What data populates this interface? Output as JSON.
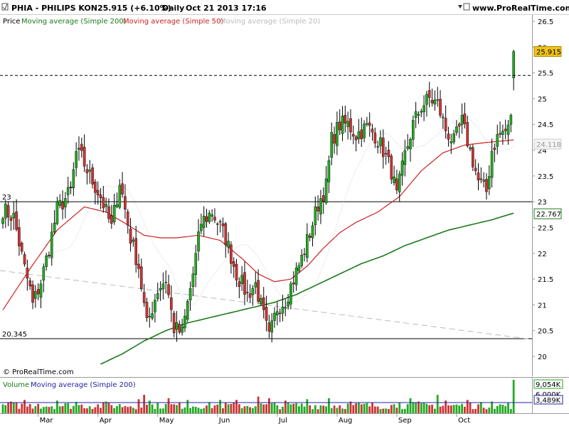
{
  "header": {
    "symbol": "PHIA - PHILIPS KON",
    "price": "25.915 (+6.10%)",
    "period": "Daily",
    "timestamp": "Oct 21 2013 17:16",
    "site": "www.ProRealTime.com"
  },
  "legend": {
    "price_label": "Price",
    "ma200_label": "Moving average (Simple 200)",
    "ma50_label": "Moving average (Simple 50)",
    "ma20_label": "Moving average (Simple 20)"
  },
  "volume_legend": {
    "label": "Volume",
    "ma_label": "Moving average (Simple 200)"
  },
  "watermark": "© ProRealTime.com",
  "colors": {
    "up": "#22aa22",
    "down": "#cc3333",
    "ma200": "#1a7a1a",
    "ma50": "#cc2222",
    "ma20": "#b8b8b8",
    "volume_ma": "#2222aa",
    "current_price_bg": "#f0c419"
  },
  "chart_data": [
    {
      "type": "candlestick",
      "title": "PHIA - PHILIPS KON",
      "ylim": [
        19.85,
        26.6
      ],
      "y_ticks": [
        "26.5",
        "26",
        "25.5",
        "25",
        "24.5",
        "24",
        "23.5",
        "23",
        "22.5",
        "22",
        "21.5",
        "21",
        "20.5",
        "20"
      ],
      "x_labels": [
        "Mar",
        "Apr",
        "May",
        "Jun",
        "Jul",
        "Aug",
        "Sep",
        "Oct"
      ],
      "x_label_index": [
        13,
        35,
        57,
        79,
        101,
        123,
        145,
        167
      ],
      "levels": [
        {
          "label": "23",
          "value": 23
        },
        {
          "label": "20.345",
          "value": 20.345
        }
      ],
      "current_price": {
        "label": "25.915",
        "value": 25.915
      },
      "current_price_guide": 25.45,
      "ma_labels": [
        {
          "label": "22.767",
          "value": 22.767
        },
        {
          "label": "24.118",
          "value": 24.118
        }
      ],
      "ohlc_anchors": [
        [
          0,
          22.85
        ],
        [
          4,
          22.7
        ],
        [
          8,
          21.7
        ],
        [
          10,
          21.3
        ],
        [
          11,
          21.0
        ],
        [
          14,
          21.45
        ],
        [
          17,
          22.1
        ],
        [
          20,
          22.85
        ],
        [
          25,
          23.2
        ],
        [
          27,
          23.95
        ],
        [
          29,
          23.85
        ],
        [
          32,
          23.5
        ],
        [
          36,
          23.1
        ],
        [
          40,
          22.5
        ],
        [
          43,
          23.4
        ],
        [
          47,
          22.3
        ],
        [
          50,
          21.75
        ],
        [
          53,
          20.6
        ],
        [
          57,
          21.3
        ],
        [
          60,
          21.5
        ],
        [
          63,
          20.55
        ],
        [
          66,
          20.45
        ],
        [
          70,
          21.6
        ],
        [
          73,
          22.6
        ],
        [
          77,
          22.8
        ],
        [
          79,
          22.6
        ],
        [
          82,
          22.3
        ],
        [
          86,
          21.6
        ],
        [
          90,
          21.2
        ],
        [
          93,
          21.4
        ],
        [
          98,
          20.35
        ],
        [
          101,
          20.95
        ],
        [
          104,
          21.1
        ],
        [
          107,
          21.5
        ],
        [
          110,
          21.9
        ],
        [
          113,
          22.4
        ],
        [
          116,
          22.95
        ],
        [
          119,
          23.3
        ],
        [
          121,
          24.2
        ],
        [
          124,
          24.5
        ],
        [
          127,
          24.5
        ],
        [
          130,
          24.3
        ],
        [
          134,
          24.45
        ],
        [
          137,
          24.3
        ],
        [
          140,
          24.0
        ],
        [
          143,
          23.6
        ],
        [
          145,
          23.1
        ],
        [
          148,
          23.9
        ],
        [
          151,
          24.5
        ],
        [
          154,
          24.85
        ],
        [
          157,
          25.0
        ],
        [
          160,
          24.9
        ],
        [
          163,
          24.4
        ],
        [
          166,
          24.15
        ],
        [
          169,
          24.55
        ],
        [
          172,
          24.0
        ],
        [
          175,
          23.4
        ],
        [
          178,
          23.2
        ],
        [
          180,
          24.0
        ],
        [
          182,
          24.25
        ],
        [
          184,
          24.35
        ],
        [
          186,
          24.4
        ],
        [
          188,
          25.05
        ]
      ],
      "ma50_anchors": [
        [
          0,
          20.9
        ],
        [
          10,
          21.7
        ],
        [
          20,
          22.45
        ],
        [
          30,
          22.9
        ],
        [
          38,
          22.8
        ],
        [
          46,
          22.55
        ],
        [
          52,
          22.35
        ],
        [
          58,
          22.3
        ],
        [
          64,
          22.3
        ],
        [
          72,
          22.35
        ],
        [
          80,
          22.25
        ],
        [
          88,
          21.9
        ],
        [
          94,
          21.6
        ],
        [
          100,
          21.45
        ],
        [
          106,
          21.5
        ],
        [
          112,
          21.75
        ],
        [
          118,
          22.1
        ],
        [
          124,
          22.4
        ],
        [
          130,
          22.6
        ],
        [
          138,
          22.8
        ],
        [
          146,
          23.1
        ],
        [
          154,
          23.6
        ],
        [
          162,
          23.95
        ],
        [
          170,
          24.1
        ],
        [
          178,
          24.15
        ],
        [
          188,
          24.2
        ]
      ],
      "ma200_anchors": [
        [
          36,
          19.85
        ],
        [
          44,
          20.05
        ],
        [
          52,
          20.3
        ],
        [
          60,
          20.5
        ],
        [
          68,
          20.65
        ],
        [
          76,
          20.75
        ],
        [
          84,
          20.85
        ],
        [
          92,
          20.95
        ],
        [
          100,
          21.05
        ],
        [
          108,
          21.2
        ],
        [
          116,
          21.4
        ],
        [
          124,
          21.6
        ],
        [
          132,
          21.8
        ],
        [
          140,
          21.95
        ],
        [
          148,
          22.15
        ],
        [
          156,
          22.3
        ],
        [
          164,
          22.45
        ],
        [
          172,
          22.55
        ],
        [
          180,
          22.65
        ],
        [
          188,
          22.78
        ]
      ],
      "volume": {
        "legend_ticks": [
          "9,054K",
          "6,000K",
          "3,489K"
        ],
        "spikes": [
          [
            3,
            0.35
          ],
          [
            8,
            0.4
          ],
          [
            13,
            0.28
          ],
          [
            20,
            0.38
          ],
          [
            27,
            0.34
          ],
          [
            38,
            0.35
          ],
          [
            50,
            0.42
          ],
          [
            52,
            0.55
          ],
          [
            54,
            0.38
          ],
          [
            61,
            0.45
          ],
          [
            68,
            0.4
          ],
          [
            80,
            0.4
          ],
          [
            86,
            0.4
          ],
          [
            94,
            0.5
          ],
          [
            98,
            0.45
          ],
          [
            104,
            0.38
          ],
          [
            112,
            0.42
          ],
          [
            120,
            0.45
          ],
          [
            128,
            0.35
          ],
          [
            146,
            0.32
          ],
          [
            150,
            0.45
          ],
          [
            153,
            0.35
          ],
          [
            160,
            0.55
          ],
          [
            163,
            0.38
          ],
          [
            171,
            0.4
          ],
          [
            180,
            0.35
          ],
          [
            188,
            1.0
          ]
        ]
      }
    }
  ]
}
